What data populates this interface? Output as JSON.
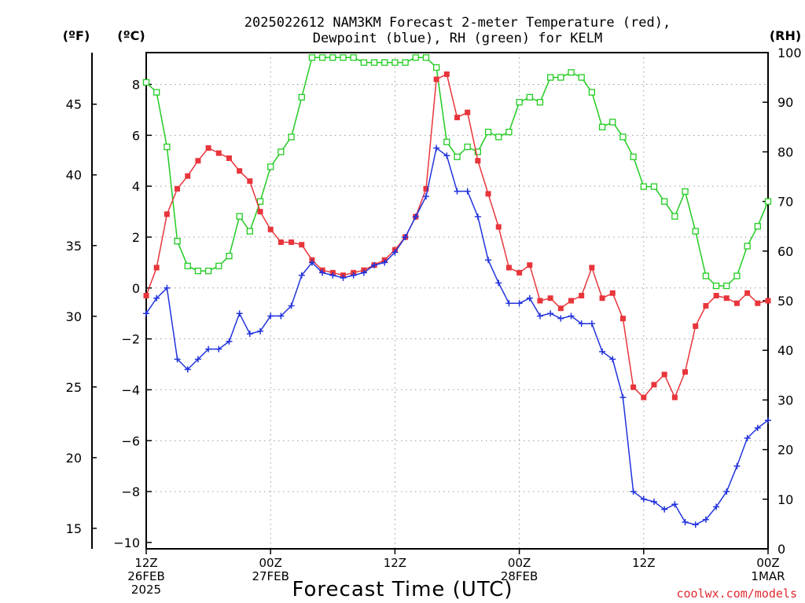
{
  "chart_data": {
    "type": "line",
    "title": "2025022612 NAM3KM Forecast 2-meter Temperature (red),",
    "subtitle": "Dewpoint (blue), RH (green) for KELM",
    "xlabel": "Forecast Time (UTC)",
    "units": {
      "fahrenheit": "(ºF)",
      "celsius": "(ºC)",
      "rh": "(RH)"
    },
    "credit": "coolwx.com/models",
    "x_ticks": [
      {
        "line1": "12Z",
        "line2": "26FEB",
        "line3": "2025",
        "hour": 0
      },
      {
        "line1": "00Z",
        "line2": "27FEB",
        "line3": "",
        "hour": 12
      },
      {
        "line1": "12Z",
        "line2": "",
        "line3": "",
        "hour": 24
      },
      {
        "line1": "00Z",
        "line2": "28FEB",
        "line3": "",
        "hour": 36
      },
      {
        "line1": "12Z",
        "line2": "",
        "line3": "",
        "hour": 48
      },
      {
        "line1": "00Z",
        "line2": "1MAR",
        "line3": "",
        "hour": 60
      }
    ],
    "x_range_hours": [
      0,
      60
    ],
    "celsius_axis": {
      "ylim": [
        -10.25,
        9.25
      ],
      "ticks": [
        8,
        6,
        4,
        2,
        0,
        -2,
        -4,
        -6,
        -8,
        -10
      ]
    },
    "fahrenheit_axis": {
      "ticks": [
        45,
        40,
        35,
        30,
        25,
        20,
        15
      ]
    },
    "rh_axis": {
      "ylim": [
        0,
        100
      ],
      "ticks": [
        100,
        90,
        80,
        70,
        60,
        50,
        40,
        30,
        20,
        10,
        0
      ]
    },
    "grid": true,
    "series": [
      {
        "name": "Temperature",
        "color": "#e8353b",
        "marker": "filled-square",
        "axis": "celsius",
        "values": [
          -0.3,
          0.8,
          2.9,
          3.9,
          4.4,
          5.0,
          5.5,
          5.3,
          5.1,
          4.6,
          4.2,
          3.0,
          2.3,
          1.8,
          1.8,
          1.7,
          1.1,
          0.7,
          0.6,
          0.5,
          0.6,
          0.7,
          0.9,
          1.1,
          1.5,
          2.0,
          2.8,
          3.9,
          8.2,
          8.4,
          6.7,
          6.9,
          5.0,
          3.7,
          2.4,
          0.8,
          0.6,
          0.9,
          -0.5,
          -0.4,
          -0.8,
          -0.5,
          -0.3,
          0.8,
          -0.4,
          -0.2,
          -1.2,
          -3.9,
          -4.3,
          -3.8,
          -3.4,
          -4.3,
          -3.3,
          -1.5,
          -0.7,
          -0.3,
          -0.4,
          -0.6,
          -0.2,
          -0.6,
          -0.5
        ]
      },
      {
        "name": "Dewpoint",
        "color": "#2233dd",
        "marker": "plus",
        "axis": "celsius",
        "values": [
          -1.0,
          -0.4,
          0.0,
          -2.8,
          -3.2,
          -2.8,
          -2.4,
          -2.4,
          -2.1,
          -1.0,
          -1.8,
          -1.7,
          -1.1,
          -1.1,
          -0.7,
          0.5,
          1.0,
          0.6,
          0.5,
          0.4,
          0.5,
          0.6,
          0.9,
          1.0,
          1.4,
          2.0,
          2.8,
          3.6,
          5.5,
          5.2,
          3.8,
          3.8,
          2.8,
          1.1,
          0.2,
          -0.6,
          -0.6,
          -0.4,
          -1.1,
          -1.0,
          -1.2,
          -1.1,
          -1.4,
          -1.4,
          -2.5,
          -2.8,
          -4.3,
          -8.0,
          -8.3,
          -8.4,
          -8.7,
          -8.5,
          -9.2,
          -9.3,
          -9.1,
          -8.6,
          -8.0,
          -7.0,
          -5.9,
          -5.5,
          -5.2
        ]
      },
      {
        "name": "RH",
        "color": "#22cc22",
        "marker": "open-square",
        "axis": "rh",
        "values": [
          94,
          92,
          81,
          62,
          57,
          56,
          56,
          57,
          59,
          67,
          64,
          70,
          77,
          80,
          83,
          91,
          99,
          99,
          99,
          99,
          99,
          98,
          98,
          98,
          98,
          98,
          99,
          99,
          97,
          82,
          79,
          81,
          80,
          84,
          83,
          84,
          90,
          91,
          90,
          95,
          95,
          96,
          95,
          92,
          85,
          86,
          83,
          79,
          73,
          73,
          70,
          67,
          72,
          64,
          55,
          53,
          53,
          55,
          61,
          65,
          70
        ]
      }
    ]
  }
}
